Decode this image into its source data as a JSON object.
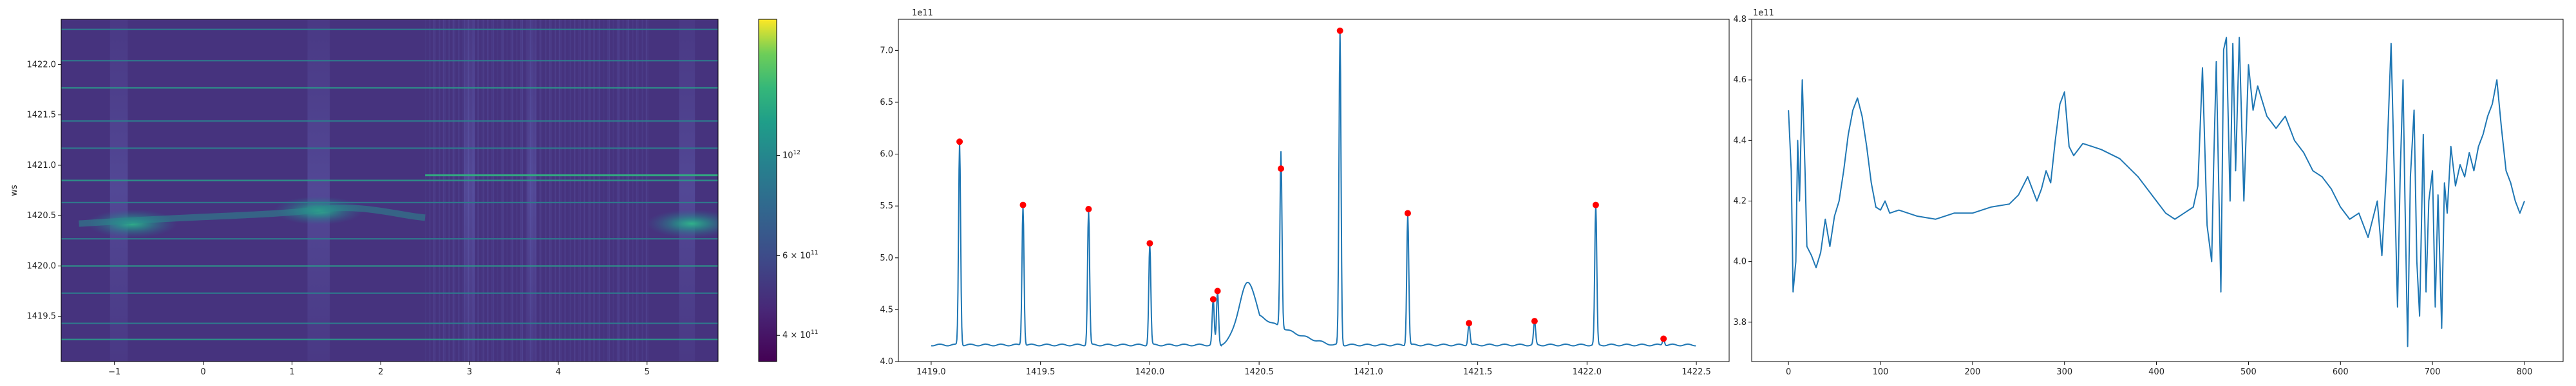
{
  "chart_data": [
    {
      "type": "heatmap",
      "ylabel": "ws",
      "x_ticks": [
        "−1",
        "0",
        "1",
        "2",
        "3",
        "4",
        "5"
      ],
      "y_ticks": [
        "1419.5",
        "1420.0",
        "1420.5",
        "1421.0",
        "1421.5",
        "1422.0"
      ],
      "xlim": [
        -1.6,
        5.8
      ],
      "ylim": [
        1419.05,
        1422.45
      ],
      "grid": false,
      "colormap": "viridis",
      "colorbar": {
        "scale": "log",
        "ticks": [
          {
            "label": "4 × 10",
            "exp": "11",
            "value": 400000000000.0
          },
          {
            "label": "6 × 10",
            "exp": "11",
            "value": 600000000000.0
          },
          {
            "label": "10",
            "exp": "12",
            "value": 1000000000000.0
          }
        ],
        "range": [
          350000000000.0,
          2000000000000.0
        ]
      },
      "bright_lines_y": [
        1419.27,
        1419.43,
        1419.73,
        1420.0,
        1420.27,
        1420.63,
        1420.85,
        1421.17,
        1421.44,
        1421.77,
        1422.04,
        1422.35
      ],
      "blobs": [
        {
          "x": -0.8,
          "y": 1420.42
        },
        {
          "x": 1.3,
          "y": 1420.55
        },
        {
          "x": 5.5,
          "y": 1420.42
        }
      ]
    },
    {
      "type": "line",
      "offset_label": "1e11",
      "xlim": [
        1418.85,
        1422.65
      ],
      "ylim": [
        4.0,
        7.3
      ],
      "x_ticks": [
        "1419.0",
        "1419.5",
        "1420.0",
        "1420.5",
        "1421.0",
        "1421.5",
        "1422.0",
        "1422.5"
      ],
      "y_ticks": [
        "4.0",
        "4.5",
        "5.0",
        "5.5",
        "6.0",
        "6.5",
        "7.0"
      ],
      "baseline": 4.16,
      "peaks": [
        {
          "x": 1419.13,
          "y": 6.12
        },
        {
          "x": 1419.42,
          "y": 5.51
        },
        {
          "x": 1419.72,
          "y": 5.47
        },
        {
          "x": 1420.0,
          "y": 5.14
        },
        {
          "x": 1420.29,
          "y": 4.6
        },
        {
          "x": 1420.31,
          "y": 4.68
        },
        {
          "x": 1420.6,
          "y": 5.86
        },
        {
          "x": 1420.87,
          "y": 7.19
        },
        {
          "x": 1421.18,
          "y": 5.43
        },
        {
          "x": 1421.46,
          "y": 4.37
        },
        {
          "x": 1421.76,
          "y": 4.39
        },
        {
          "x": 1422.04,
          "y": 5.51
        },
        {
          "x": 1422.35,
          "y": 4.22
        }
      ],
      "hump": {
        "x0": 1420.33,
        "x1": 1420.9,
        "peak_x": 1420.45,
        "peak_y": 4.76
      },
      "marker_color": "#ff0000",
      "line_color": "#1f77b4",
      "grid": false
    },
    {
      "type": "line",
      "offset_label": "1e11",
      "xlim": [
        -40,
        842
      ],
      "ylim": [
        3.67,
        4.8
      ],
      "x_ticks": [
        "0",
        "100",
        "200",
        "300",
        "400",
        "500",
        "600",
        "700",
        "800"
      ],
      "y_ticks": [
        "3.8",
        "4.0",
        "4.2",
        "4.4",
        "4.6",
        "4.8"
      ],
      "x": [
        0,
        3,
        5,
        8,
        10,
        12,
        15,
        18,
        20,
        25,
        30,
        35,
        40,
        45,
        50,
        55,
        60,
        65,
        70,
        75,
        80,
        85,
        90,
        95,
        100,
        105,
        110,
        120,
        140,
        160,
        180,
        200,
        220,
        240,
        250,
        260,
        270,
        275,
        280,
        285,
        290,
        295,
        300,
        305,
        310,
        320,
        330,
        340,
        360,
        380,
        400,
        410,
        420,
        430,
        440,
        445,
        450,
        455,
        460,
        462,
        465,
        468,
        470,
        473,
        476,
        480,
        483,
        486,
        490,
        495,
        500,
        505,
        510,
        520,
        530,
        540,
        550,
        560,
        570,
        580,
        590,
        600,
        610,
        620,
        630,
        640,
        645,
        650,
        655,
        660,
        662,
        665,
        668,
        670,
        673,
        676,
        680,
        683,
        686,
        690,
        693,
        696,
        700,
        703,
        706,
        710,
        713,
        716,
        720,
        725,
        730,
        735,
        740,
        745,
        750,
        755,
        760,
        765,
        770,
        775,
        780,
        785,
        790,
        795,
        800
      ],
      "y": [
        4.5,
        4.3,
        3.9,
        4.0,
        4.4,
        4.2,
        4.6,
        4.3,
        4.05,
        4.02,
        3.98,
        4.03,
        4.14,
        4.05,
        4.15,
        4.2,
        4.3,
        4.42,
        4.5,
        4.54,
        4.48,
        4.38,
        4.26,
        4.18,
        4.17,
        4.2,
        4.16,
        4.17,
        4.15,
        4.14,
        4.16,
        4.16,
        4.18,
        4.19,
        4.22,
        4.28,
        4.2,
        4.24,
        4.3,
        4.26,
        4.4,
        4.52,
        4.56,
        4.38,
        4.35,
        4.39,
        4.38,
        4.37,
        4.34,
        4.28,
        4.2,
        4.16,
        4.14,
        4.16,
        4.18,
        4.25,
        4.64,
        4.12,
        4.0,
        4.3,
        4.66,
        4.2,
        3.9,
        4.7,
        4.74,
        4.2,
        4.72,
        4.3,
        4.74,
        4.2,
        4.65,
        4.5,
        4.58,
        4.48,
        4.44,
        4.48,
        4.4,
        4.36,
        4.3,
        4.28,
        4.24,
        4.18,
        4.14,
        4.16,
        4.08,
        4.2,
        4.02,
        4.3,
        4.72,
        4.1,
        3.85,
        4.3,
        4.6,
        4.22,
        3.72,
        4.28,
        4.5,
        4.0,
        3.82,
        4.42,
        3.9,
        4.2,
        4.3,
        3.85,
        4.22,
        3.78,
        4.26,
        4.16,
        4.38,
        4.25,
        4.32,
        4.28,
        4.36,
        4.3,
        4.38,
        4.42,
        4.48,
        4.52,
        4.6,
        4.44,
        4.3,
        4.26,
        4.2,
        4.16,
        4.2
      ],
      "line_color": "#1f77b4",
      "grid": false
    }
  ]
}
